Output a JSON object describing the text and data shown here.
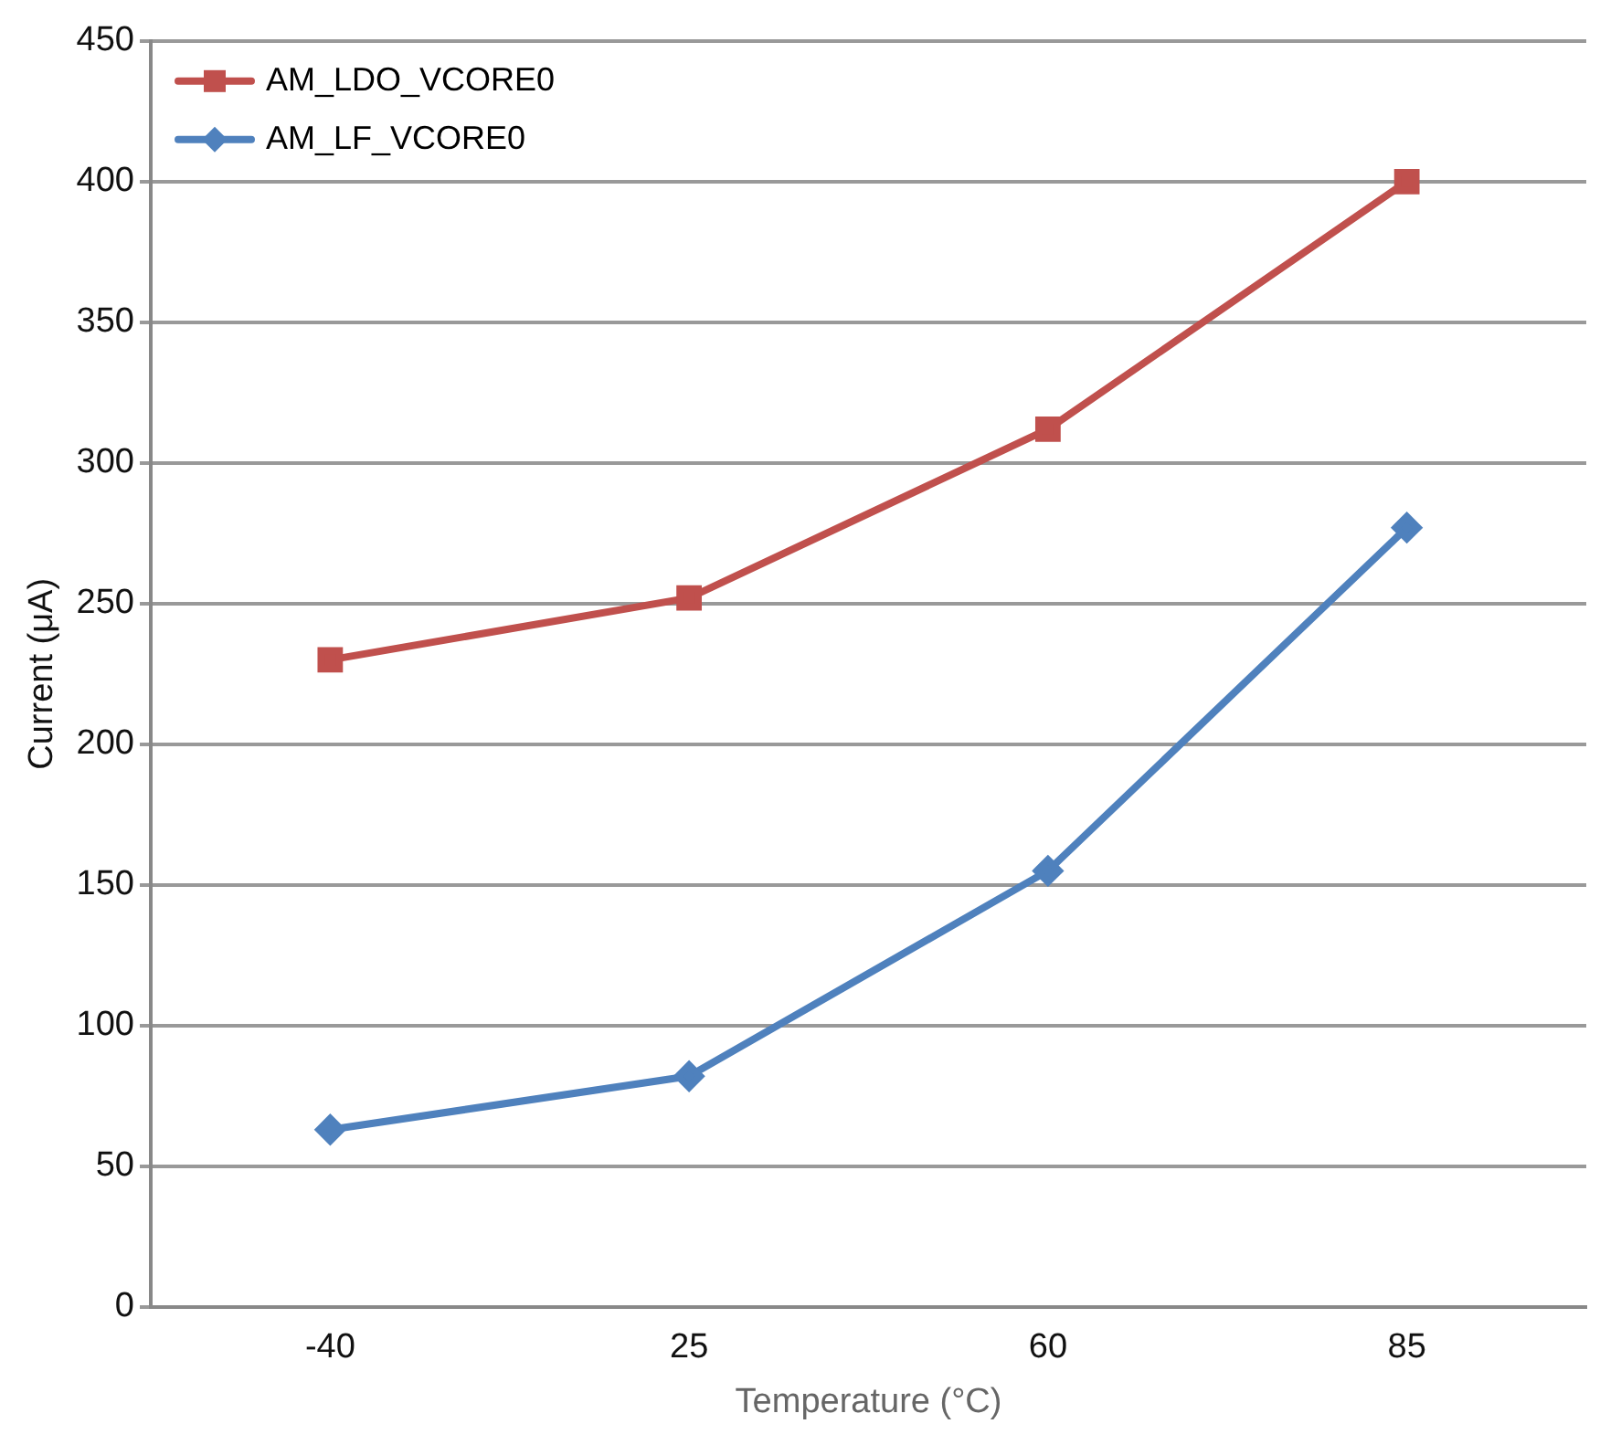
{
  "chart_data": {
    "type": "line",
    "xlabel": "Temperature (°C)",
    "ylabel": "Current (μA)",
    "categories": [
      "-40",
      "25",
      "60",
      "85"
    ],
    "series": [
      {
        "name": "AM_LDO_VCORE0",
        "color": "#c0504d",
        "marker": "square",
        "values": [
          230,
          252,
          312,
          400
        ]
      },
      {
        "name": "AM_LF_VCORE0",
        "color": "#4f81bd",
        "marker": "diamond",
        "values": [
          63,
          82,
          155,
          277
        ]
      }
    ],
    "ylim": [
      0,
      450
    ],
    "yticks": [
      0,
      50,
      100,
      150,
      200,
      250,
      300,
      350,
      400,
      450
    ],
    "grid": "y",
    "legend": "top left"
  }
}
